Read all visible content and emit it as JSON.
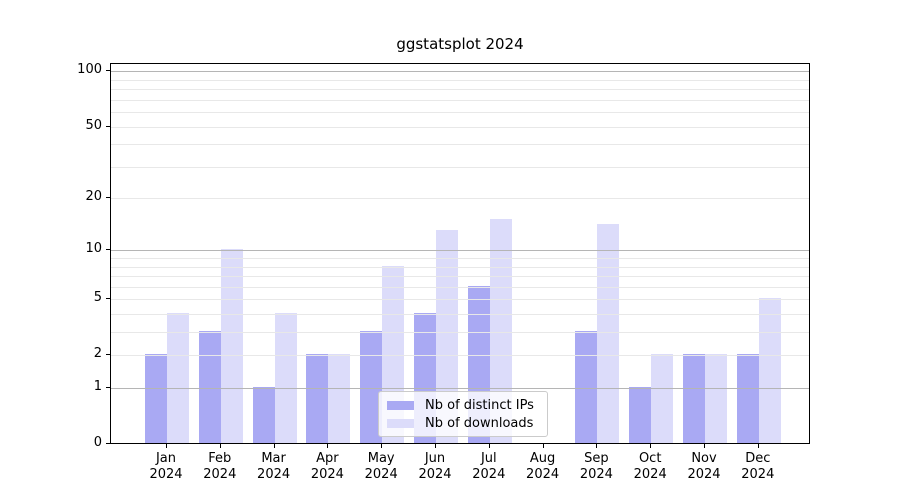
{
  "chart_data": {
    "type": "bar",
    "title": "ggstatsplot 2024",
    "x_categories": [
      "Jan",
      "Feb",
      "Mar",
      "Apr",
      "May",
      "Jun",
      "Jul",
      "Aug",
      "Sep",
      "Oct",
      "Nov",
      "Dec"
    ],
    "x_year": "2024",
    "series": [
      {
        "name": "Nb of distinct IPs",
        "color": "#a9a9f3",
        "values": [
          2,
          3,
          1,
          2,
          3,
          4,
          6,
          0,
          3,
          1,
          2,
          2
        ]
      },
      {
        "name": "Nb of downloads",
        "color": "#dcdcfa",
        "values": [
          4,
          10,
          4,
          2,
          8,
          13,
          15,
          0,
          14,
          2,
          2,
          5
        ]
      }
    ],
    "yscale": "log1p",
    "ylim": [
      0,
      110
    ],
    "yticks": [
      0,
      1,
      2,
      5,
      10,
      20,
      50,
      100
    ],
    "grid": {
      "major_values": [
        1,
        10,
        100
      ],
      "minor_values": [
        2,
        3,
        4,
        5,
        6,
        7,
        8,
        9,
        20,
        30,
        40,
        50,
        60,
        70,
        80,
        90
      ],
      "major_color": "#b5b5b5",
      "minor_color": "#e8e8e8"
    },
    "legend_position": "lower center",
    "xlabel": "",
    "ylabel": ""
  }
}
